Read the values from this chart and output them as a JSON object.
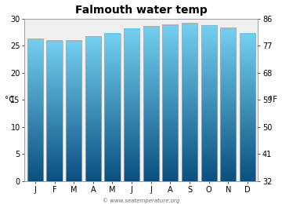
{
  "title": "Falmouth water temp",
  "months": [
    "J",
    "F",
    "M",
    "A",
    "M",
    "J",
    "J",
    "A",
    "S",
    "O",
    "N",
    "D"
  ],
  "temps_c": [
    26.2,
    25.9,
    25.9,
    26.7,
    27.2,
    28.1,
    28.5,
    28.8,
    29.1,
    28.7,
    28.2,
    27.2
  ],
  "ylabel_left": "°C",
  "ylabel_right": "°F",
  "ylim_c": [
    0,
    30
  ],
  "yticks_c": [
    0,
    5,
    10,
    15,
    20,
    25,
    30
  ],
  "yticks_f": [
    32,
    41,
    50,
    59,
    68,
    77,
    86
  ],
  "bar_color_top": "#74d0f0",
  "bar_color_bottom": "#0a5080",
  "background_color": "#ffffff",
  "plot_bg_color": "#f0f0f0",
  "watermark": "© www.seatemperature.org",
  "title_fontsize": 10,
  "tick_fontsize": 7,
  "label_fontsize": 7.5,
  "bar_width": 0.82
}
